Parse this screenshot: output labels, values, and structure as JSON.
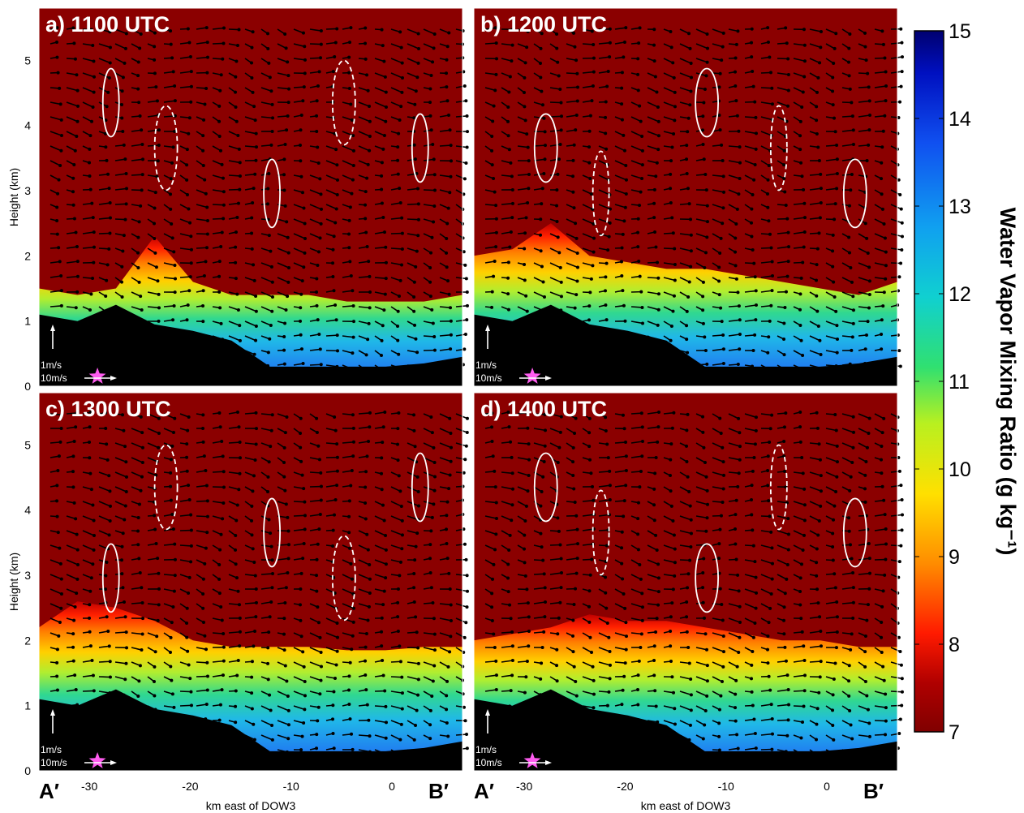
{
  "chart_data": {
    "type": "heatmap",
    "xlabel": "km east of DOW3",
    "ylabel": "Height (km)",
    "x_ticks": [
      "-30",
      "-20",
      "-10",
      "0"
    ],
    "y_ticks": [
      "0",
      "1",
      "2",
      "3",
      "4",
      "5"
    ],
    "xlim": [
      -35,
      7
    ],
    "ylim": [
      0,
      5.8
    ],
    "section_start_label": "A′",
    "section_end_label": "B′",
    "colorbar": {
      "label": "Water Vapor Mixing Ratio (g kg⁻¹)",
      "min": 7,
      "max": 15,
      "ticks": [
        "7",
        "8",
        "9",
        "10",
        "11",
        "12",
        "13",
        "14",
        "15"
      ]
    },
    "reference_vectors": [
      "1m/s",
      "10m/s"
    ],
    "panels": [
      {
        "title": "a) 1100 UTC",
        "moist_top_km": [
          1.5,
          1.4,
          1.5,
          2.3,
          1.6,
          1.4,
          1.4,
          1.4,
          1.3,
          1.3,
          1.3,
          1.4
        ],
        "terrain_km": [
          1.1,
          1.0,
          1.25,
          0.95,
          0.85,
          0.7,
          0.3,
          0.3,
          0.3,
          0.3,
          0.35,
          0.45
        ]
      },
      {
        "title": "b) 1200 UTC",
        "moist_top_km": [
          2.0,
          2.1,
          2.5,
          2.0,
          1.9,
          1.8,
          1.8,
          1.7,
          1.6,
          1.5,
          1.4,
          1.6
        ],
        "terrain_km": [
          1.1,
          1.0,
          1.25,
          0.95,
          0.85,
          0.7,
          0.3,
          0.3,
          0.3,
          0.3,
          0.35,
          0.45
        ]
      },
      {
        "title": "c) 1300 UTC",
        "moist_top_km": [
          2.2,
          2.6,
          2.5,
          2.3,
          2.0,
          1.9,
          1.9,
          1.9,
          1.85,
          1.85,
          1.9,
          1.9
        ],
        "terrain_km": [
          1.1,
          1.0,
          1.25,
          0.95,
          0.85,
          0.7,
          0.3,
          0.3,
          0.3,
          0.3,
          0.35,
          0.45
        ]
      },
      {
        "title": "d) 1400 UTC",
        "moist_top_km": [
          2.0,
          2.1,
          2.2,
          2.4,
          2.3,
          2.3,
          2.2,
          2.1,
          2.0,
          2.0,
          1.9,
          1.9
        ],
        "terrain_km": [
          1.1,
          1.0,
          1.25,
          0.95,
          0.85,
          0.7,
          0.3,
          0.3,
          0.3,
          0.3,
          0.35,
          0.45
        ]
      }
    ],
    "colors": {
      "background": "#8b0000",
      "terrain": "#000000",
      "star": "#ff5cf0",
      "contour": "#ffffff",
      "vector": "#000000"
    }
  }
}
